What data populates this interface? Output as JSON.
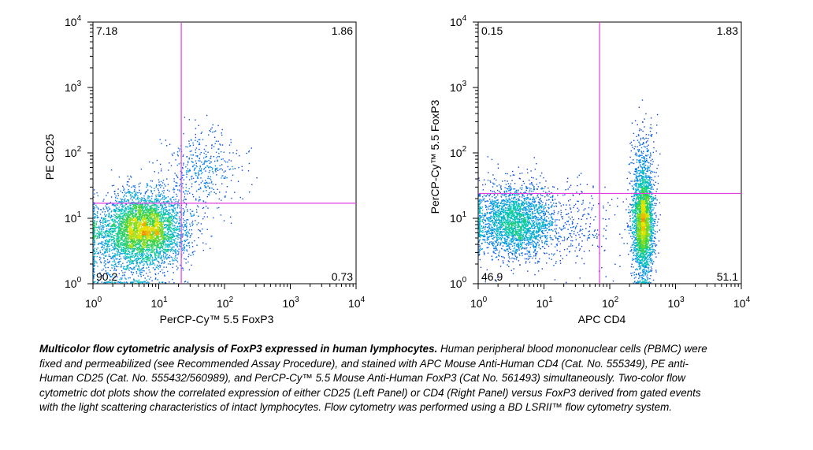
{
  "chart_data": [
    {
      "type": "scatter",
      "panel": "left",
      "xlabel": "PerCP-Cy™ 5.5 FoxP3",
      "ylabel": "PE CD25",
      "scale": "log",
      "xlim": [
        1,
        10000
      ],
      "ylim": [
        1,
        10000
      ],
      "ticks": [
        {
          "base": "10",
          "exp": "0"
        },
        {
          "base": "10",
          "exp": "1"
        },
        {
          "base": "10",
          "exp": "2"
        },
        {
          "base": "10",
          "exp": "3"
        },
        {
          "base": "10",
          "exp": "4"
        }
      ],
      "gate": {
        "x": 22,
        "y": 17
      },
      "quadrants": {
        "upper_left": "7.18",
        "upper_right": "1.86",
        "lower_left": "90.2",
        "lower_right": "0.73"
      },
      "populations": [
        {
          "cx": 0.75,
          "cy": 0.82,
          "sx": 0.33,
          "sy": 0.28,
          "n": 4200
        },
        {
          "cx": 1.65,
          "cy": 1.75,
          "sx": 0.3,
          "sy": 0.3,
          "n": 420
        },
        {
          "cx": 0.5,
          "cy": 0.45,
          "sx": 0.4,
          "sy": 0.4,
          "n": 500
        }
      ]
    },
    {
      "type": "scatter",
      "panel": "right",
      "xlabel": "APC CD4",
      "ylabel": "PerCP-Cy™ 5.5 FoxP3",
      "scale": "log",
      "xlim": [
        1,
        10000
      ],
      "ylim": [
        1,
        10000
      ],
      "ticks": [
        {
          "base": "10",
          "exp": "0"
        },
        {
          "base": "10",
          "exp": "1"
        },
        {
          "base": "10",
          "exp": "2"
        },
        {
          "base": "10",
          "exp": "3"
        },
        {
          "base": "10",
          "exp": "4"
        }
      ],
      "gate": {
        "x": 70,
        "y": 24
      },
      "quadrants": {
        "upper_left": "0.15",
        "upper_right": "1.83",
        "lower_left": "46.9",
        "lower_right": "51.1"
      },
      "populations": [
        {
          "cx": 0.55,
          "cy": 0.95,
          "sx": 0.3,
          "sy": 0.28,
          "n": 2600
        },
        {
          "cx": 2.5,
          "cy": 0.9,
          "sx": 0.08,
          "sy": 0.38,
          "n": 2600
        },
        {
          "cx": 2.5,
          "cy": 1.75,
          "sx": 0.09,
          "sy": 0.35,
          "n": 300
        },
        {
          "cx": 1.5,
          "cy": 0.9,
          "sx": 0.35,
          "sy": 0.35,
          "n": 250
        }
      ]
    }
  ],
  "caption": {
    "title": "Multicolor flow cytometric analysis of FoxP3 expressed in human lymphocytes.",
    "body": "Human peripheral blood mononuclear cells (PBMC) were fixed and permeabilized (see Recommended Assay Procedure), and stained with APC Mouse Anti-Human CD4 (Cat. No. 555349), PE anti-Human CD25 (Cat. No. 555432/560989), and PerCP-Cy™ 5.5 Mouse Anti-Human FoxP3 (Cat No. 561493) simultaneously. Two-color flow cytometric dot plots show the correlated expression of either CD25 (Left Panel) or CD4 (Right Panel) versus FoxP3 derived from gated events with the light scattering characteristics of intact lymphocytes. Flow cytometry was performed using a BD LSRII™ flow cytometry system."
  },
  "colors": {
    "gate": "#e040e0",
    "axis": "#000000"
  }
}
